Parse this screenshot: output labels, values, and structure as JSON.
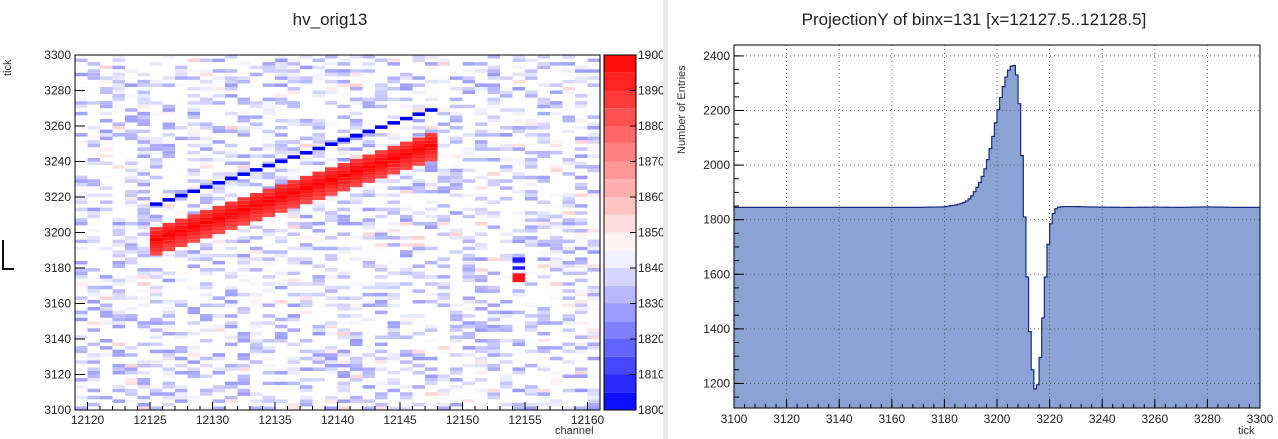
{
  "left": {
    "title": "hv_orig13",
    "xlabel": "channel",
    "ylabel": "tick"
  },
  "right": {
    "title": "ProjectionY of binx=131 [x=12127.5..12128.5]",
    "xlabel": "tick",
    "ylabel": "Number of Entries"
  },
  "chart_data": [
    {
      "type": "heatmap",
      "title": "hv_orig13",
      "xlabel": "channel",
      "ylabel": "tick",
      "xlim": [
        12119,
        12161
      ],
      "ylim": [
        3100,
        3300
      ],
      "x_ticks": [
        12120,
        12125,
        12130,
        12135,
        12140,
        12145,
        12150,
        12155,
        12160
      ],
      "y_ticks": [
        3100,
        3120,
        3140,
        3160,
        3180,
        3200,
        3220,
        3240,
        3260,
        3280,
        3300
      ],
      "zlim": [
        1800,
        1900
      ],
      "z_ticks": [
        1800,
        1810,
        1820,
        1830,
        1840,
        1850,
        1860,
        1870,
        1880,
        1890,
        1900
      ],
      "baseline": 1845,
      "features": [
        {
          "name": "track",
          "channel_start": 12125,
          "channel_end": 12147,
          "tick_start": 3205,
          "tick_end": 3258,
          "positive_peak": 1900,
          "negative_dip": 1800
        },
        {
          "name": "spot",
          "channel_start": 12154,
          "channel_end": 12155,
          "tick_start": 3172,
          "tick_end": 3186,
          "positive_peak": 1895,
          "negative_dip": 1805
        }
      ]
    },
    {
      "type": "area",
      "title": "ProjectionY of binx=131 [x=12127.5..12128.5]",
      "xlabel": "tick",
      "ylabel": "Number of Entries",
      "xlim": [
        3100,
        3300
      ],
      "ylim": [
        1110,
        2440
      ],
      "x_ticks": [
        3100,
        3120,
        3140,
        3160,
        3180,
        3200,
        3220,
        3240,
        3260,
        3280,
        3300
      ],
      "y_ticks": [
        1200,
        1400,
        1600,
        1800,
        2000,
        2200,
        2400
      ],
      "grid": true,
      "fill_color": "#8aa3d4",
      "line_color": "#1a2a80",
      "x": [
        3100,
        3110,
        3120,
        3130,
        3140,
        3150,
        3160,
        3170,
        3180,
        3185,
        3188,
        3190,
        3192,
        3194,
        3196,
        3198,
        3200,
        3202,
        3204,
        3206,
        3207,
        3208,
        3209,
        3210,
        3211,
        3212,
        3213,
        3214,
        3215,
        3216,
        3217,
        3218,
        3219,
        3220,
        3221,
        3222,
        3223,
        3225,
        3230,
        3240,
        3250,
        3260,
        3270,
        3280,
        3290,
        3300
      ],
      "y": [
        1845,
        1845,
        1845,
        1845,
        1845,
        1845,
        1845,
        1845,
        1847,
        1855,
        1865,
        1880,
        1910,
        1945,
        2000,
        2080,
        2180,
        2270,
        2340,
        2370,
        2360,
        2300,
        2150,
        1920,
        1700,
        1480,
        1300,
        1200,
        1160,
        1230,
        1360,
        1520,
        1660,
        1760,
        1810,
        1835,
        1845,
        1848,
        1848,
        1846,
        1845,
        1846,
        1845,
        1847,
        1845,
        1845
      ]
    }
  ]
}
